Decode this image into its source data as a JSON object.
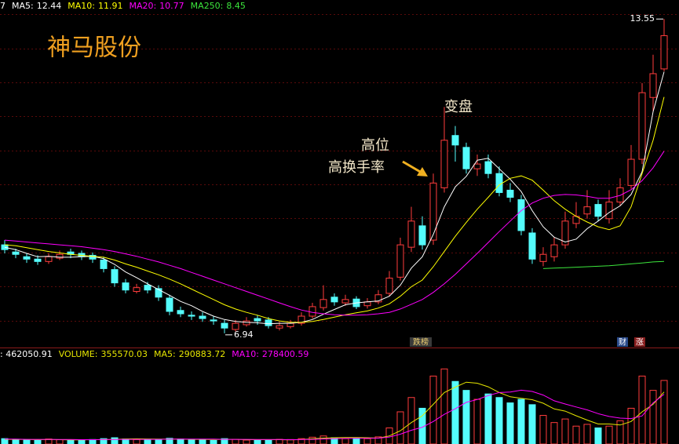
{
  "chart_data": [
    {
      "type": "candlestick",
      "title": "神马股份",
      "lead_text": "7",
      "open": [
        8.8,
        8.65,
        8.55,
        8.5,
        8.45,
        8.52,
        8.65,
        8.62,
        8.58,
        8.48,
        8.28,
        8.0,
        7.82,
        7.95,
        7.88,
        7.68,
        7.42,
        7.32,
        7.3,
        7.22,
        7.15,
        7.02,
        7.12,
        7.25,
        7.22,
        7.05,
        7.08,
        7.15,
        7.3,
        7.48,
        7.7,
        7.58,
        7.66,
        7.52,
        7.6,
        7.78,
        8.12,
        8.75,
        9.2,
        8.9,
        10.0,
        11.1,
        10.85,
        10.4,
        10.55,
        10.3,
        9.95,
        9.75,
        9.05,
        8.45,
        8.55,
        8.8,
        9.25,
        9.45,
        9.65,
        9.35,
        9.7,
        10.05,
        10.6,
        11.9,
        12.5
      ],
      "high": [
        8.9,
        8.72,
        8.62,
        8.58,
        8.62,
        8.68,
        8.72,
        8.68,
        8.64,
        8.55,
        8.35,
        8.08,
        7.98,
        8.02,
        7.95,
        7.75,
        7.5,
        7.4,
        7.38,
        7.3,
        7.22,
        7.22,
        7.28,
        7.32,
        7.28,
        7.18,
        7.22,
        7.38,
        7.58,
        7.95,
        7.78,
        7.75,
        7.72,
        7.68,
        7.85,
        8.25,
        8.95,
        9.6,
        9.4,
        10.3,
        11.7,
        11.3,
        10.95,
        10.7,
        10.7,
        10.45,
        10.1,
        9.85,
        9.15,
        8.75,
        8.95,
        9.5,
        9.7,
        9.95,
        9.75,
        9.95,
        10.2,
        10.9,
        12.2,
        12.8,
        13.55
      ],
      "low": [
        8.62,
        8.52,
        8.42,
        8.38,
        8.4,
        8.48,
        8.52,
        8.48,
        8.42,
        8.22,
        7.92,
        7.78,
        7.78,
        7.78,
        7.62,
        7.32,
        7.28,
        7.22,
        7.18,
        7.12,
        6.94,
        6.98,
        7.08,
        7.12,
        7.04,
        7.0,
        7.04,
        7.1,
        7.25,
        7.42,
        7.52,
        7.52,
        7.45,
        7.46,
        7.55,
        7.72,
        8.05,
        8.65,
        8.7,
        8.8,
        9.9,
        10.55,
        10.3,
        10.25,
        10.2,
        9.82,
        9.7,
        9.0,
        8.4,
        8.35,
        8.45,
        8.72,
        9.15,
        9.35,
        9.3,
        9.25,
        9.62,
        9.98,
        10.5,
        11.6,
        12.45
      ],
      "close": [
        8.7,
        8.6,
        8.5,
        8.45,
        8.55,
        8.6,
        8.6,
        8.55,
        8.5,
        8.3,
        8.0,
        7.85,
        7.9,
        7.85,
        7.7,
        7.4,
        7.35,
        7.3,
        7.25,
        7.2,
        7.05,
        7.15,
        7.2,
        7.2,
        7.1,
        7.1,
        7.15,
        7.3,
        7.5,
        7.65,
        7.6,
        7.65,
        7.5,
        7.6,
        7.75,
        8.1,
        8.8,
        9.3,
        8.8,
        10.1,
        11.0,
        10.9,
        10.4,
        10.5,
        10.3,
        9.9,
        9.8,
        9.1,
        8.5,
        8.6,
        8.8,
        9.3,
        9.4,
        9.6,
        9.4,
        9.7,
        10.0,
        10.6,
        12.0,
        12.4,
        13.2
      ],
      "up_color": "#ff3c3c",
      "down_color": "#54fcfc",
      "series": [
        {
          "name": "MA5:",
          "color": "#ffffff",
          "values": [
            8.75,
            8.7,
            8.62,
            8.55,
            8.56,
            8.54,
            8.54,
            8.55,
            8.56,
            8.51,
            8.39,
            8.23,
            8.11,
            7.98,
            7.86,
            7.74,
            7.61,
            7.52,
            7.4,
            7.3,
            7.23,
            7.19,
            7.17,
            7.16,
            7.14,
            7.15,
            7.15,
            7.17,
            7.23,
            7.34,
            7.44,
            7.54,
            7.58,
            7.6,
            7.62,
            7.72,
            7.95,
            8.31,
            8.55,
            9.02,
            9.6,
            10.02,
            10.24,
            10.58,
            10.62,
            10.4,
            10.18,
            9.92,
            9.52,
            9.18,
            8.96,
            8.86,
            8.92,
            9.14,
            9.3,
            9.48,
            9.62,
            9.86,
            10.34,
            11.6,
            12.44
          ]
        },
        {
          "name": "MA10:",
          "color": "#ffff00",
          "values": [
            8.8,
            8.78,
            8.74,
            8.7,
            8.66,
            8.63,
            8.6,
            8.58,
            8.56,
            8.54,
            8.48,
            8.4,
            8.33,
            8.25,
            8.17,
            8.08,
            7.98,
            7.87,
            7.76,
            7.65,
            7.54,
            7.45,
            7.38,
            7.32,
            7.25,
            7.2,
            7.17,
            7.17,
            7.19,
            7.23,
            7.28,
            7.33,
            7.37,
            7.41,
            7.47,
            7.56,
            7.72,
            7.92,
            8.06,
            8.34,
            8.66,
            8.98,
            9.27,
            9.55,
            9.8,
            10.06,
            10.2,
            10.25,
            10.16,
            9.95,
            9.73,
            9.55,
            9.4,
            9.28,
            9.18,
            9.12,
            9.2,
            9.6,
            10.3,
            11.0,
            11.91
          ]
        },
        {
          "name": "MA20:",
          "color": "#ff00ff",
          "values": [
            8.9,
            8.88,
            8.86,
            8.84,
            8.82,
            8.8,
            8.78,
            8.76,
            8.73,
            8.7,
            8.66,
            8.61,
            8.56,
            8.5,
            8.44,
            8.37,
            8.3,
            8.22,
            8.14,
            8.06,
            7.98,
            7.9,
            7.82,
            7.74,
            7.66,
            7.58,
            7.5,
            7.43,
            7.38,
            7.35,
            7.33,
            7.32,
            7.32,
            7.33,
            7.35,
            7.38,
            7.45,
            7.55,
            7.65,
            7.8,
            7.98,
            8.18,
            8.4,
            8.62,
            8.85,
            9.08,
            9.3,
            9.52,
            9.68,
            9.78,
            9.84,
            9.86,
            9.85,
            9.82,
            9.78,
            9.78,
            9.84,
            9.96,
            10.15,
            10.42,
            10.77
          ]
        },
        {
          "name": "MA250:",
          "color": "#3ce63c",
          "values": [
            null,
            null,
            null,
            null,
            null,
            null,
            null,
            null,
            null,
            null,
            null,
            null,
            null,
            null,
            null,
            null,
            null,
            null,
            null,
            null,
            null,
            null,
            null,
            null,
            null,
            null,
            null,
            null,
            null,
            null,
            null,
            null,
            null,
            null,
            null,
            null,
            null,
            null,
            null,
            null,
            null,
            null,
            null,
            null,
            null,
            null,
            null,
            null,
            null,
            8.3,
            8.31,
            8.32,
            8.33,
            8.34,
            8.35,
            8.36,
            8.38,
            8.4,
            8.42,
            8.44,
            8.45
          ]
        }
      ],
      "ylim": [
        6.69,
        13.95
      ],
      "annotations": [
        "变盘",
        "高位",
        "高换手率"
      ],
      "event_tags": [
        "跌榜",
        "财",
        "涨"
      ]
    },
    {
      "type": "bar",
      "lead_text": ": 462050.91",
      "series": [
        {
          "name": "VOLUME:",
          "color": "#e6e600",
          "values": [
            30000,
            25000,
            22000,
            20000,
            28000,
            24000,
            20000,
            22000,
            25000,
            30000,
            35000,
            28000,
            25000,
            22000,
            26000,
            32000,
            28000,
            24000,
            22000,
            20000,
            30000,
            26000,
            22000,
            20000,
            24000,
            26000,
            25000,
            30000,
            38000,
            45000,
            35000,
            30000,
            32000,
            30000,
            40000,
            90000,
            180000,
            260000,
            200000,
            380000,
            420000,
            350000,
            300000,
            250000,
            280000,
            260000,
            230000,
            250000,
            220000,
            160000,
            120000,
            140000,
            100000,
            110000,
            90000,
            100000,
            130000,
            200000,
            380000,
            300000,
            355570.03
          ]
        },
        {
          "name": "MA5:",
          "color": "#e6e600",
          "values": [
            26000,
            26000,
            25000,
            24000,
            25000,
            24000,
            23000,
            23000,
            24000,
            24000,
            26000,
            28000,
            29000,
            28000,
            27000,
            27000,
            27000,
            26000,
            26000,
            25000,
            26000,
            26000,
            24000,
            24000,
            24000,
            24000,
            23000,
            25000,
            29000,
            33000,
            35000,
            36000,
            36000,
            35000,
            33000,
            45000,
            74000,
            120000,
            158000,
            222000,
            288000,
            318000,
            346000,
            340000,
            320000,
            288000,
            264000,
            256000,
            248000,
            228000,
            196000,
            184000,
            158000,
            134000,
            112000,
            112000,
            106000,
            126000,
            180000,
            222000,
            290883.72
          ]
        },
        {
          "name": "MA10:",
          "color": "#ff00ff",
          "values": [
            27000,
            27000,
            26000,
            26000,
            26000,
            25000,
            25000,
            24000,
            24000,
            25000,
            25000,
            26000,
            26000,
            26000,
            26000,
            27000,
            27000,
            27000,
            27000,
            27000,
            26000,
            26000,
            26000,
            25000,
            25000,
            25000,
            24000,
            25000,
            26000,
            28000,
            30000,
            31000,
            32000,
            32000,
            33000,
            39000,
            55000,
            77000,
            94000,
            126000,
            166000,
            197000,
            233000,
            249000,
            271000,
            288000,
            291000,
            301000,
            294000,
            274000,
            242000,
            224000,
            207000,
            191000,
            170000,
            154000,
            145000,
            142000,
            157000,
            230000,
            278400.59
          ]
        }
      ],
      "ylim": [
        0,
        531000
      ]
    }
  ]
}
